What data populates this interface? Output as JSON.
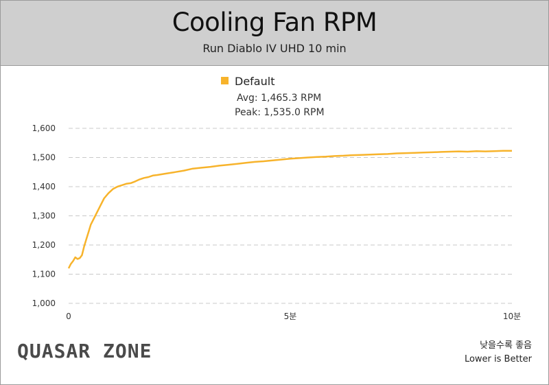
{
  "header": {
    "title": "Cooling Fan RPM",
    "subtitle": "Run Diablo IV UHD 10 min"
  },
  "legend": {
    "series_name": "Default",
    "avg_text": "Avg: 1,465.3 RPM",
    "peak_text": "Peak: 1,535.0 RPM"
  },
  "footer": {
    "brand": "QUASAR ZONE",
    "note_korean": "낮을수록 좋음",
    "note_english": "Lower is Better"
  },
  "colors": {
    "series": "#F7B32B",
    "grid": "#c8c8c8",
    "header_bg": "#cfcfcf"
  },
  "chart_data": {
    "type": "line",
    "title": "Cooling Fan RPM",
    "subtitle": "Run Diablo IV UHD 10 min",
    "xlabel": "",
    "ylabel": "",
    "xlim": [
      0,
      10
    ],
    "ylim": [
      1000,
      1600
    ],
    "x_ticks": [
      {
        "value": 0,
        "label": "0"
      },
      {
        "value": 5,
        "label": "5분"
      },
      {
        "value": 10,
        "label": "10분"
      }
    ],
    "y_ticks": [
      {
        "value": 1000,
        "label": "1,000"
      },
      {
        "value": 1100,
        "label": "1,100"
      },
      {
        "value": 1200,
        "label": "1,200"
      },
      {
        "value": 1300,
        "label": "1,300"
      },
      {
        "value": 1400,
        "label": "1,400"
      },
      {
        "value": 1500,
        "label": "1,500"
      },
      {
        "value": 1600,
        "label": "1,600"
      }
    ],
    "grid": "horizontal dashed",
    "legend_position": "top-center",
    "series": [
      {
        "name": "Default",
        "color": "#F7B32B",
        "x": [
          0,
          0.05,
          0.1,
          0.15,
          0.2,
          0.25,
          0.3,
          0.35,
          0.4,
          0.45,
          0.5,
          0.6,
          0.7,
          0.8,
          0.9,
          1.0,
          1.1,
          1.2,
          1.3,
          1.4,
          1.5,
          1.6,
          1.7,
          1.8,
          1.9,
          2.0,
          2.2,
          2.4,
          2.6,
          2.8,
          3.0,
          3.2,
          3.4,
          3.6,
          3.8,
          4.0,
          4.2,
          4.4,
          4.6,
          4.8,
          5.0,
          5.2,
          5.4,
          5.6,
          5.8,
          6.0,
          6.2,
          6.4,
          6.6,
          6.8,
          7.0,
          7.2,
          7.4,
          7.6,
          7.8,
          8.0,
          8.2,
          8.4,
          8.6,
          8.8,
          9.0,
          9.2,
          9.4,
          9.6,
          9.8,
          10.0
        ],
        "values": [
          1120,
          1135,
          1145,
          1158,
          1152,
          1155,
          1165,
          1195,
          1220,
          1245,
          1270,
          1300,
          1330,
          1360,
          1378,
          1392,
          1400,
          1405,
          1410,
          1412,
          1418,
          1425,
          1430,
          1433,
          1438,
          1440,
          1445,
          1450,
          1455,
          1462,
          1465,
          1468,
          1472,
          1475,
          1478,
          1482,
          1485,
          1487,
          1490,
          1493,
          1496,
          1498,
          1500,
          1502,
          1503,
          1505,
          1506,
          1508,
          1509,
          1510,
          1511,
          1512,
          1514,
          1515,
          1516,
          1517,
          1518,
          1519,
          1520,
          1521,
          1520,
          1522,
          1521,
          1522,
          1523,
          1523
        ]
      }
    ]
  }
}
